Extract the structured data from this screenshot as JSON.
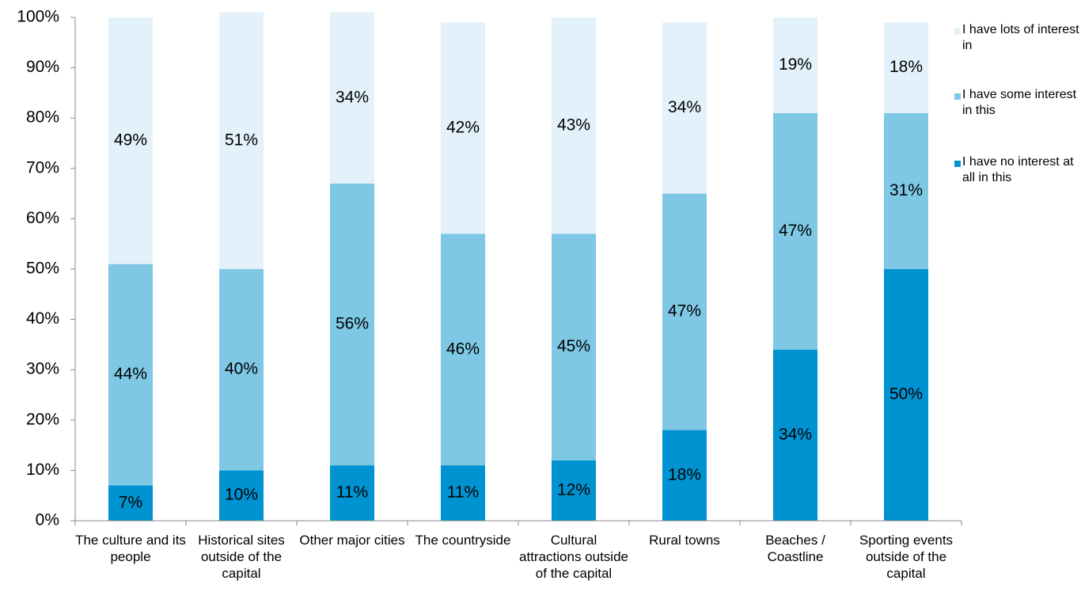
{
  "chart_data": {
    "type": "stacked_bar",
    "categories": [
      "The culture and its people",
      "Historical sites outside of the capital",
      "Other major cities",
      "The countryside",
      "Cultural attractions outside of the capital",
      "Rural towns",
      "Beaches / Coastline",
      "Sporting events outside of the capital"
    ],
    "series": [
      {
        "name": "I have no interest at all in this",
        "color": "#0093d1",
        "values": [
          7,
          10,
          11,
          11,
          12,
          18,
          34,
          50
        ],
        "value_labels": [
          "7%",
          "10%",
          "11%",
          "11%",
          "12%",
          "18%",
          "34%",
          "50%"
        ]
      },
      {
        "name": "I have some interest in this",
        "color": "#7ec8e6",
        "values": [
          44,
          40,
          56,
          46,
          45,
          47,
          47,
          31
        ],
        "value_labels": [
          "44%",
          "40%",
          "56%",
          "46%",
          "45%",
          "47%",
          "47%",
          "31%"
        ]
      },
      {
        "name": "I have lots of interest in",
        "color": "#e2f1fa",
        "values": [
          49,
          51,
          34,
          42,
          43,
          34,
          19,
          18
        ],
        "value_labels": [
          "49%",
          "51%",
          "34%",
          "42%",
          "43%",
          "34%",
          "19%",
          "18%"
        ]
      }
    ],
    "ylim": [
      0,
      100
    ],
    "yticks": [
      {
        "value": 0,
        "label": "0%"
      },
      {
        "value": 10,
        "label": "10%"
      },
      {
        "value": 20,
        "label": "20%"
      },
      {
        "value": 30,
        "label": "30%"
      },
      {
        "value": 40,
        "label": "40%"
      },
      {
        "value": 50,
        "label": "50%"
      },
      {
        "value": 60,
        "label": "60%"
      },
      {
        "value": 70,
        "label": "70%"
      },
      {
        "value": 80,
        "label": "80%"
      },
      {
        "value": 90,
        "label": "90%"
      },
      {
        "value": 100,
        "label": "100%"
      }
    ],
    "grid": false,
    "legend": "right"
  }
}
